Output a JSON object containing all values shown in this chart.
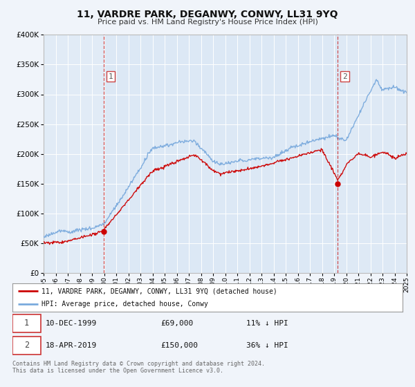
{
  "title": "11, VARDRE PARK, DEGANWY, CONWY, LL31 9YQ",
  "subtitle": "Price paid vs. HM Land Registry's House Price Index (HPI)",
  "background_color": "#f0f4fa",
  "plot_bg_color": "#dce8f5",
  "grid_color": "#ffffff",
  "shade_color": "#c8dcf0",
  "ylim": [
    0,
    400000
  ],
  "yticks": [
    0,
    50000,
    100000,
    150000,
    200000,
    250000,
    300000,
    350000,
    400000
  ],
  "xmin": 1995,
  "xmax": 2025,
  "sale1_date": 1999.95,
  "sale1_price": 69000,
  "sale1_label": "1",
  "sale2_date": 2019.29,
  "sale2_price": 150000,
  "sale2_label": "2",
  "legend_entry1": "11, VARDRE PARK, DEGANWY, CONWY, LL31 9YQ (detached house)",
  "legend_entry2": "HPI: Average price, detached house, Conwy",
  "annotation1_date": "10-DEC-1999",
  "annotation1_price": "£69,000",
  "annotation1_hpi": "11% ↓ HPI",
  "annotation2_date": "18-APR-2019",
  "annotation2_price": "£150,000",
  "annotation2_hpi": "36% ↓ HPI",
  "footer": "Contains HM Land Registry data © Crown copyright and database right 2024.\nThis data is licensed under the Open Government Licence v3.0.",
  "red_color": "#cc0000",
  "blue_color": "#7aaadd",
  "dashed_red": "#cc3333"
}
